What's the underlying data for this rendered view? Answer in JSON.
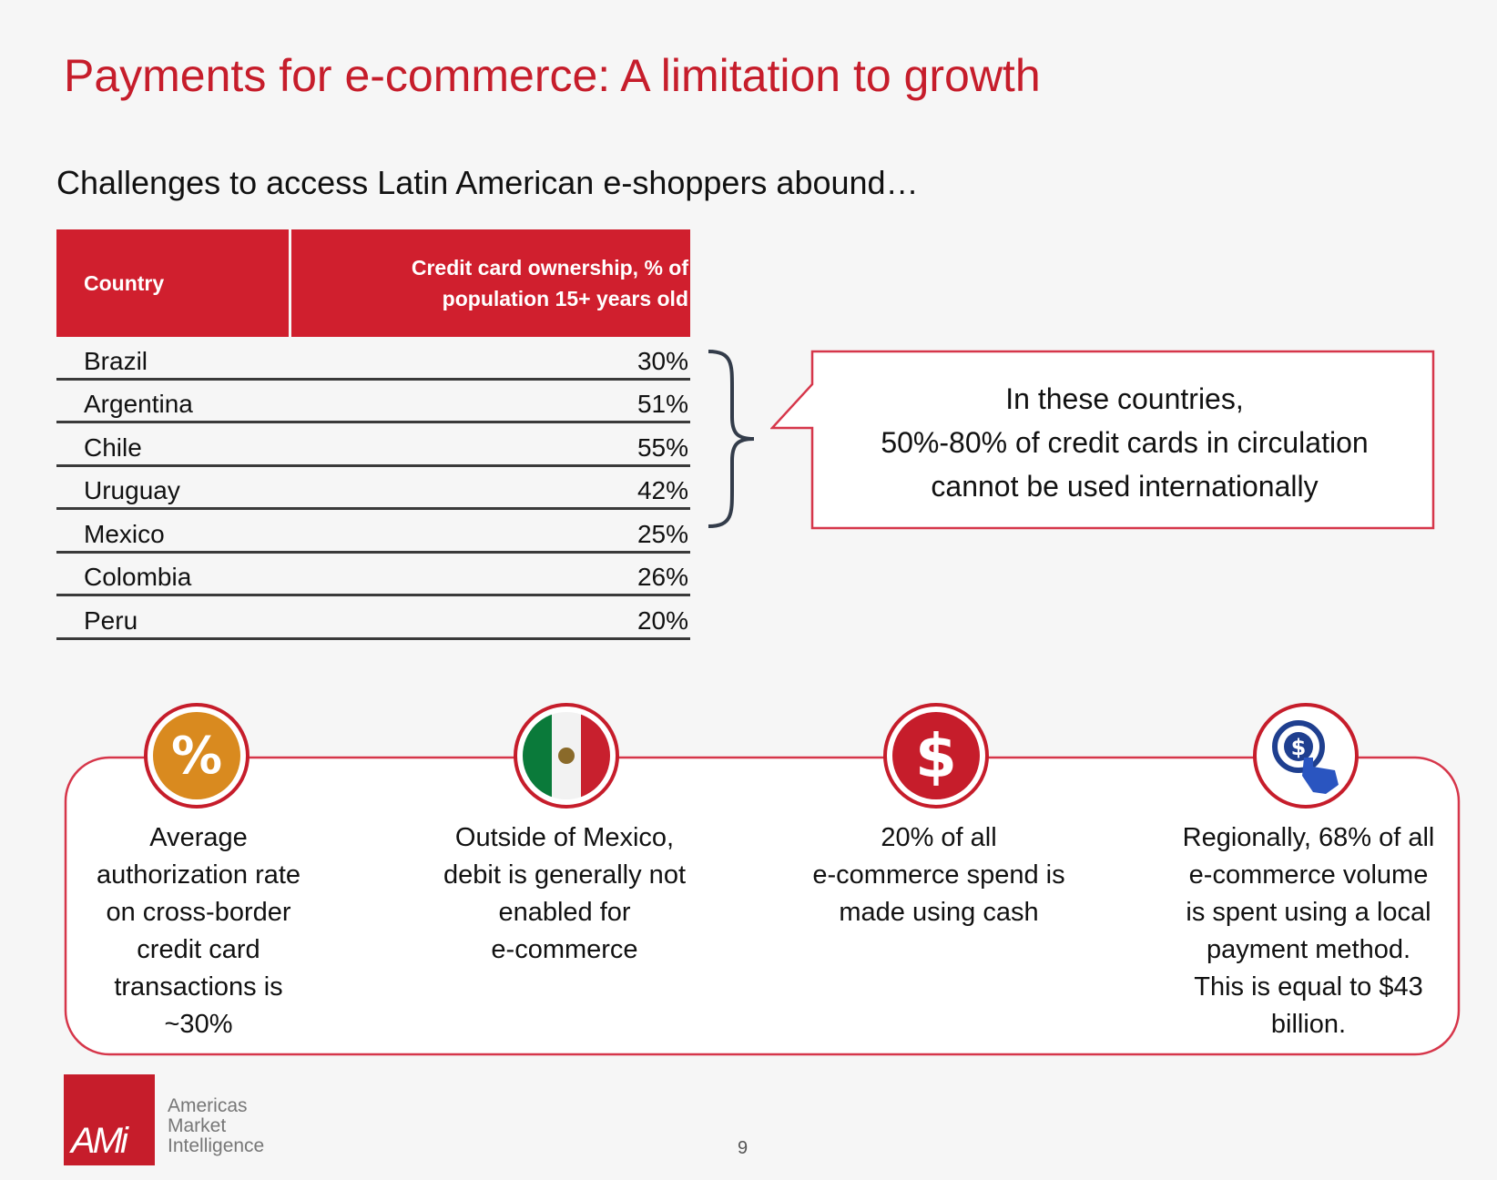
{
  "title": "Payments for e-commerce: A limitation to growth",
  "subtitle": "Challenges to access Latin American e-shoppers abound…",
  "table": {
    "header_country": "Country",
    "header_value_line1": "Credit card ownership, % of",
    "header_value_line2": "population 15+ years old",
    "rows": [
      {
        "country": "Brazil",
        "value": "30%"
      },
      {
        "country": "Argentina",
        "value": "51%"
      },
      {
        "country": "Chile",
        "value": "55%"
      },
      {
        "country": "Uruguay",
        "value": "42%"
      },
      {
        "country": "Mexico",
        "value": "25%"
      },
      {
        "country": "Colombia",
        "value": "26%"
      },
      {
        "country": "Peru",
        "value": "20%"
      }
    ]
  },
  "callout": {
    "line1": "In these countries,",
    "line2": "50%-80% of credit cards in circulation",
    "line3": "cannot be used internationally"
  },
  "stats": [
    {
      "icon": "percent-icon",
      "lines": [
        "Average",
        "authorization rate",
        "on cross-border",
        "credit card",
        "transactions is",
        "~30%"
      ]
    },
    {
      "icon": "mexico-flag-icon",
      "lines": [
        "Outside of Mexico,",
        "debit is generally not",
        "enabled for",
        "e-commerce"
      ]
    },
    {
      "icon": "dollar-icon",
      "lines": [
        "20% of all",
        "e-commerce spend is",
        "made using cash"
      ]
    },
    {
      "icon": "hand-click-dollar-icon",
      "lines": [
        "Regionally, 68% of all",
        "e-commerce volume",
        "is spent using a local",
        "payment method.",
        "This is equal to $43",
        "billion."
      ]
    }
  ],
  "footer": {
    "logo_mark": "AMi",
    "logo_line1": "Americas",
    "logo_line2": "Market",
    "logo_line3": "Intelligence",
    "page_number": "9"
  },
  "colors": {
    "accent": "#c61d2b",
    "table_header": "#d01f2e",
    "icon_orange": "#d98a1f"
  }
}
